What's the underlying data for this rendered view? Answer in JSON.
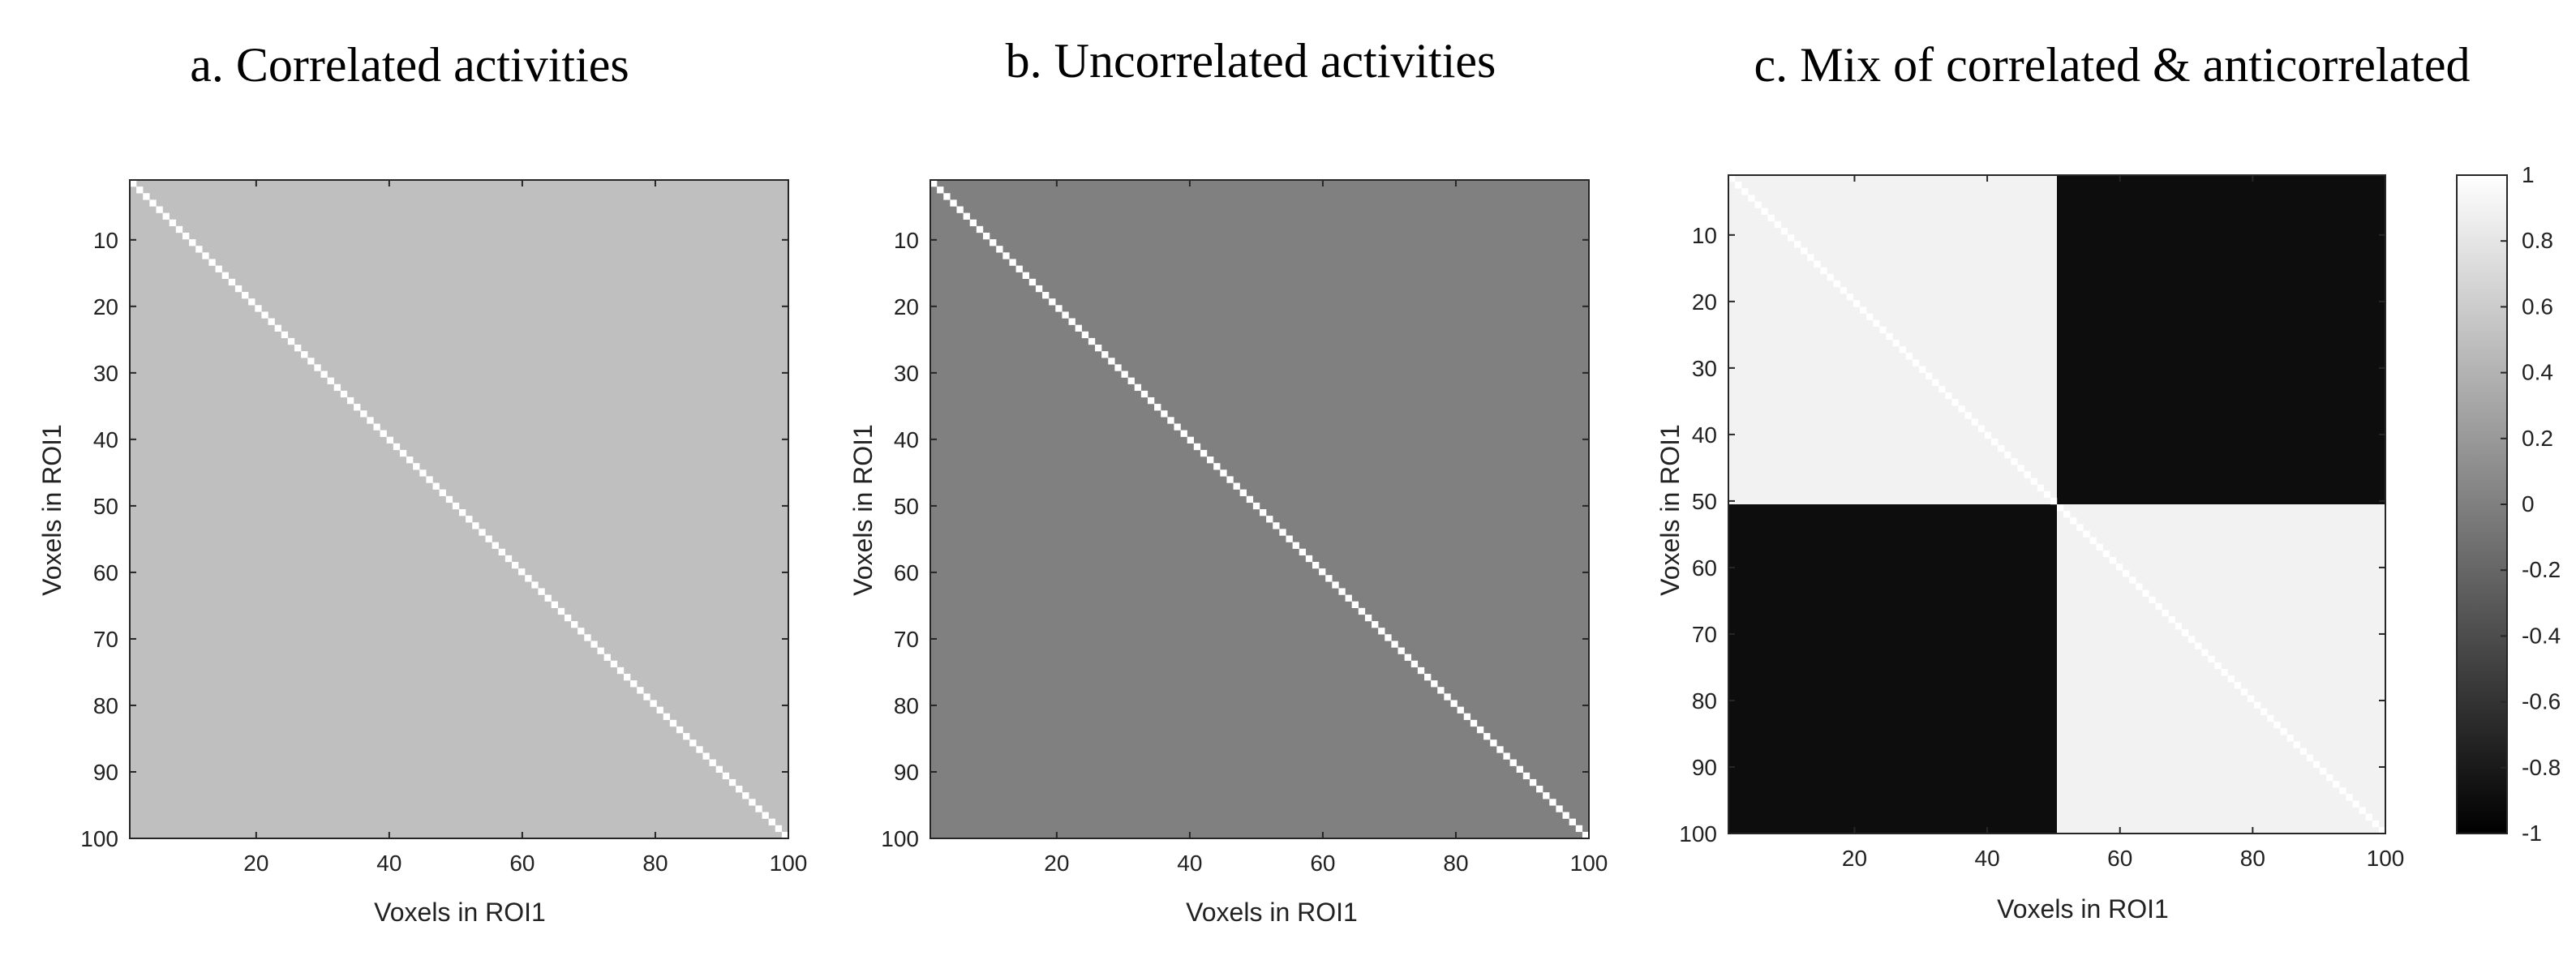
{
  "chart_data": [
    {
      "type": "heatmap",
      "title": "a. Correlated activities",
      "xlabel": "Voxels in ROI1",
      "ylabel": "Voxels in ROI1",
      "xlim": [
        1,
        100
      ],
      "ylim": [
        1,
        100
      ],
      "xticks": [
        20,
        40,
        60,
        80,
        100
      ],
      "yticks": [
        10,
        20,
        30,
        40,
        50,
        60,
        70,
        80,
        90,
        100
      ],
      "matrix": {
        "size": 100,
        "diagonal": 1,
        "off_diagonal": 0.5
      },
      "colormap": "gray",
      "clim": [
        -1,
        1
      ]
    },
    {
      "type": "heatmap",
      "title": "b. Uncorrelated activities",
      "xlabel": "Voxels in ROI1",
      "ylabel": "Voxels in ROI1",
      "xlim": [
        1,
        100
      ],
      "ylim": [
        1,
        100
      ],
      "xticks": [
        20,
        40,
        60,
        80,
        100
      ],
      "yticks": [
        10,
        20,
        30,
        40,
        50,
        60,
        70,
        80,
        90,
        100
      ],
      "matrix": {
        "size": 100,
        "diagonal": 1,
        "off_diagonal": 0
      },
      "colormap": "gray",
      "clim": [
        -1,
        1
      ]
    },
    {
      "type": "heatmap",
      "title": "c. Mix of correlated & anticorrelated",
      "xlabel": "Voxels in ROI1",
      "ylabel": "Voxels in ROI1",
      "xlim": [
        1,
        100
      ],
      "ylim": [
        1,
        100
      ],
      "xticks": [
        20,
        40,
        60,
        80,
        100
      ],
      "yticks": [
        10,
        20,
        30,
        40,
        50,
        60,
        70,
        80,
        90,
        100
      ],
      "matrix": {
        "size": 100,
        "diagonal": 1,
        "blocks": [
          {
            "rows": [
              1,
              50
            ],
            "cols": [
              1,
              50
            ],
            "value": 0.9
          },
          {
            "rows": [
              1,
              50
            ],
            "cols": [
              51,
              100
            ],
            "value": -0.9
          },
          {
            "rows": [
              51,
              100
            ],
            "cols": [
              1,
              50
            ],
            "value": -0.9
          },
          {
            "rows": [
              51,
              100
            ],
            "cols": [
              51,
              100
            ],
            "value": 0.9
          }
        ]
      },
      "colormap": "gray",
      "clim": [
        -1,
        1
      ],
      "colorbar": {
        "ticks": [
          1,
          0.8,
          0.6,
          0.4,
          0.2,
          0,
          -0.2,
          -0.4,
          -0.6,
          -0.8,
          -1
        ],
        "tick_labels": [
          "1",
          "0.8",
          "0.6",
          "0.4",
          "0.2",
          "0",
          "-0.2",
          "-0.4",
          "-0.6",
          "-0.8",
          "-1"
        ]
      }
    }
  ]
}
